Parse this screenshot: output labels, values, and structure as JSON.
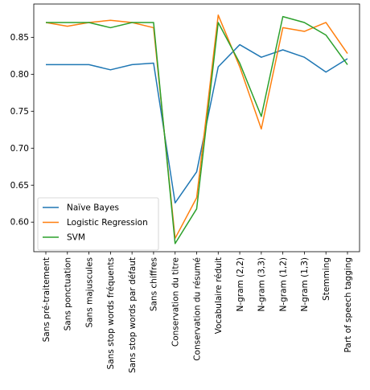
{
  "chart_data": {
    "type": "line",
    "categories": [
      "Sans pré-traitement",
      "Sans ponctuation",
      "Sans majuscules",
      "Sans stop words fréquents",
      "Sans stop words par défaut",
      "Sans chiffres",
      "Conservation du titre",
      "Conservation du résumé",
      "Vocabulaire réduit",
      "N-gram (2,2)",
      "N-gram (3,3)",
      "N-gram (1,2)",
      "N-gram (1,3)",
      "Stemming",
      "Part of speech tagging"
    ],
    "series": [
      {
        "name": "Naïve Bayes",
        "color": "#1f77b4",
        "values": [
          0.813,
          0.813,
          0.813,
          0.806,
          0.813,
          0.815,
          0.626,
          0.668,
          0.81,
          0.84,
          0.823,
          0.833,
          0.823,
          0.803,
          0.821
        ]
      },
      {
        "name": "Logistic Regression",
        "color": "#ff7f0e",
        "values": [
          0.87,
          0.865,
          0.87,
          0.873,
          0.87,
          0.863,
          0.578,
          0.633,
          0.88,
          0.81,
          0.726,
          0.863,
          0.858,
          0.87,
          0.828
        ]
      },
      {
        "name": "SVM",
        "color": "#2ca02c",
        "values": [
          0.87,
          0.87,
          0.87,
          0.863,
          0.87,
          0.87,
          0.571,
          0.618,
          0.87,
          0.815,
          0.743,
          0.878,
          0.87,
          0.853,
          0.813
        ]
      }
    ],
    "yticks": [
      "0.60",
      "0.65",
      "0.70",
      "0.75",
      "0.80",
      "0.85"
    ],
    "ylim": [
      0.56,
      0.895
    ],
    "title": "",
    "xlabel": "",
    "ylabel": "",
    "grid": false,
    "legend_position": "lower-left"
  }
}
